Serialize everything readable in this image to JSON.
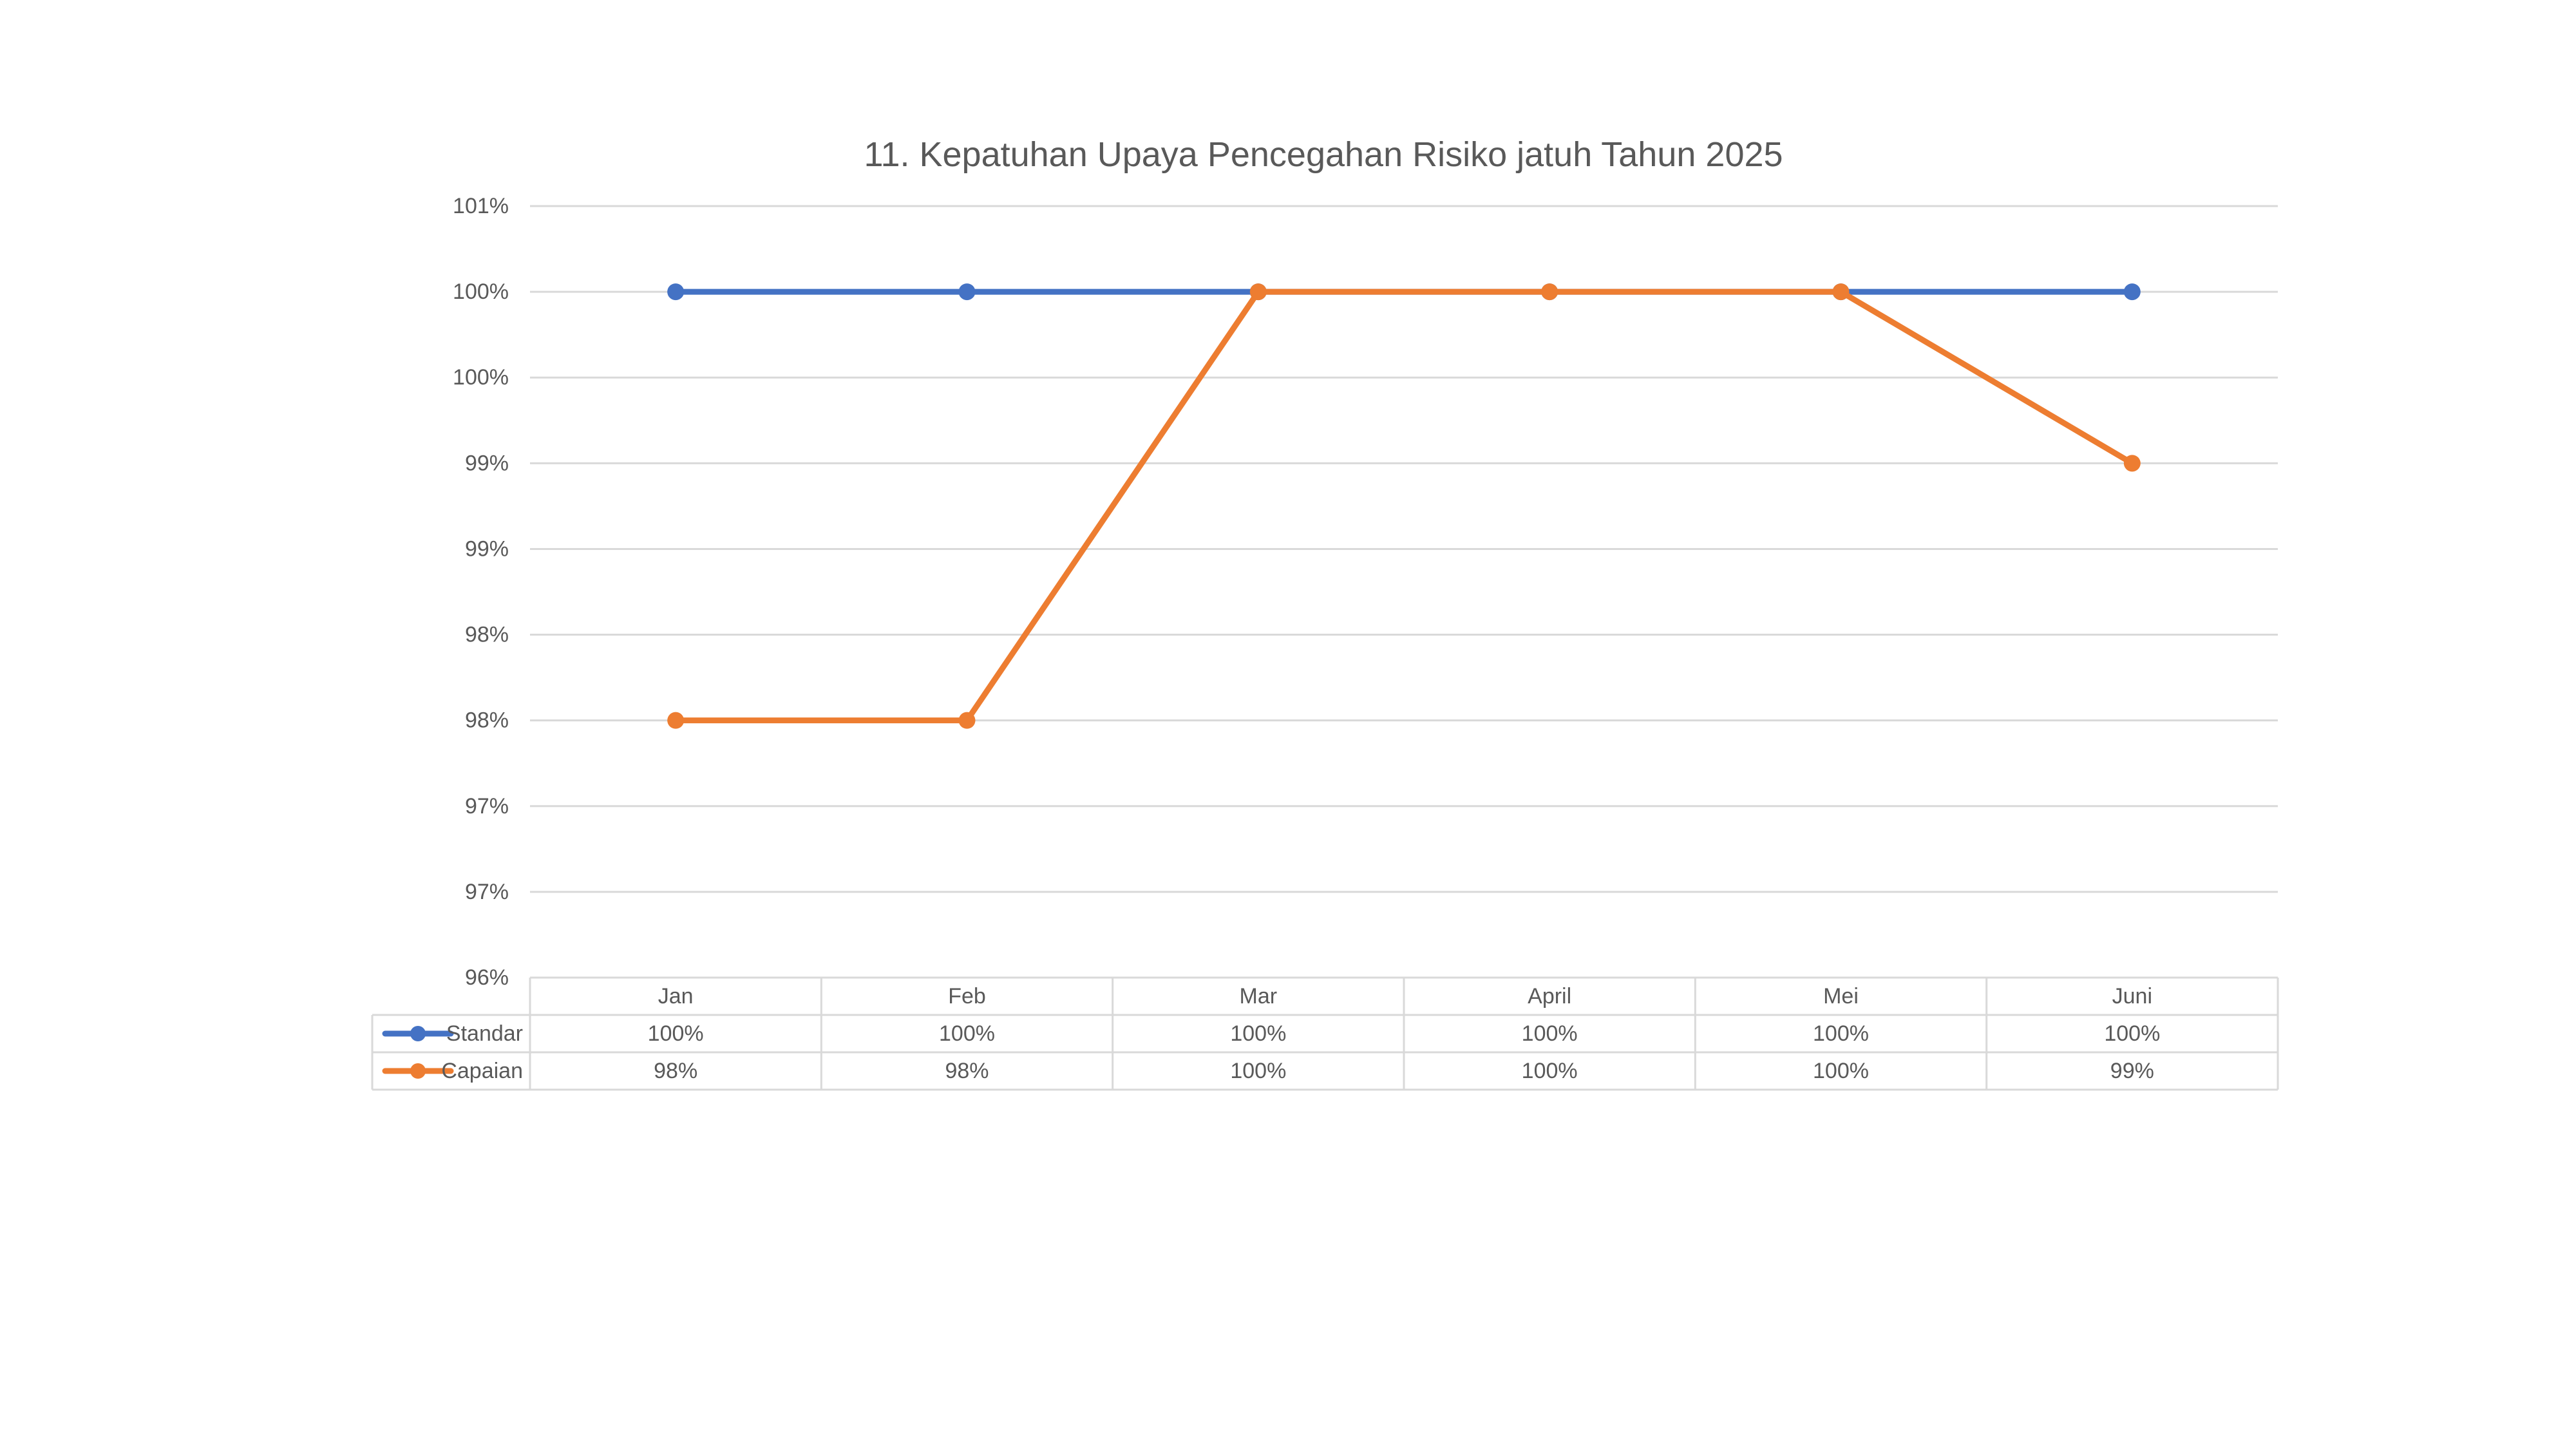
{
  "page": {
    "background": "#FFFFFF"
  },
  "chart_data": {
    "type": "line",
    "title": "11. Kepatuhan Upaya Pencegahan Risiko jatuh Tahun 2025",
    "categories": [
      "Jan",
      "Feb",
      "Mar",
      "April",
      "Mei",
      "Juni"
    ],
    "series": [
      {
        "name": "Standar",
        "color": "#4472C4",
        "values": [
          100,
          100,
          100,
          100,
          100,
          100
        ],
        "unit": "%",
        "gridline_index": [
          1,
          1,
          1,
          1,
          1,
          1
        ]
      },
      {
        "name": "Capaian",
        "color": "#ED7D31",
        "values": [
          98,
          98,
          100,
          100,
          100,
          99
        ],
        "unit": "%",
        "gridline_index": [
          6,
          6,
          1,
          1,
          1,
          3
        ]
      }
    ],
    "y_axis": {
      "tick_labels": [
        "101%",
        "100%",
        "100%",
        "99%",
        "99%",
        "98%",
        "98%",
        "97%",
        "97%",
        "96%"
      ]
    },
    "x_axis": {
      "labels_shown_in": "data-table"
    },
    "legend": {
      "position": "data-table-left",
      "entries": [
        "Standar",
        "Capaian"
      ]
    },
    "grid": true,
    "colors": {
      "gridline": "#D9D9D9",
      "table_border": "#D9D9D9",
      "text": "#595959",
      "title": "#595959",
      "background": "#FFFFFF"
    }
  }
}
